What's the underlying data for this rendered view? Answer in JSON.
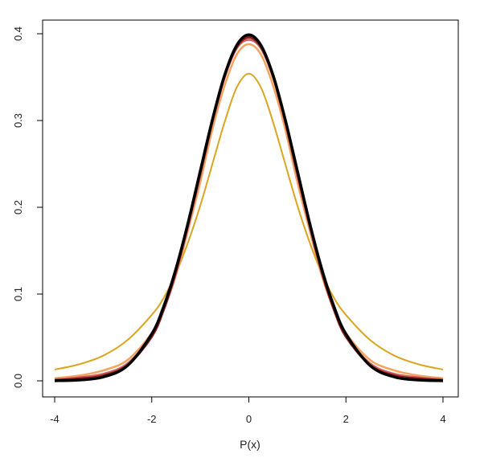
{
  "chart_data": {
    "type": "line",
    "title": "",
    "xlabel": "P(x)",
    "ylabel": "",
    "xlim": [
      -4,
      4
    ],
    "ylim": [
      0,
      0.4
    ],
    "xticks": [
      "-4",
      "-2",
      "0",
      "2",
      "4"
    ],
    "yticks": [
      "0.0",
      "0.1",
      "0.2",
      "0.3",
      "0.4"
    ],
    "grid": false,
    "legend": "none",
    "x": [
      -4.0,
      -3.5,
      -3.0,
      -2.5,
      -2.0,
      -1.75,
      -1.5,
      -1.25,
      -1.0,
      -0.75,
      -0.5,
      -0.25,
      0.0,
      0.25,
      0.5,
      0.75,
      1.0,
      1.25,
      1.5,
      1.75,
      2.0,
      2.5,
      3.0,
      3.5,
      4.0
    ],
    "series": [
      {
        "color": "#DAA520",
        "stroke": 2,
        "values": [
          0.013,
          0.019,
          0.029,
          0.047,
          0.076,
          0.096,
          0.124,
          0.16,
          0.202,
          0.25,
          0.298,
          0.338,
          0.354,
          0.338,
          0.298,
          0.25,
          0.202,
          0.16,
          0.124,
          0.096,
          0.076,
          0.047,
          0.029,
          0.019,
          0.013
        ]
      },
      {
        "color": "#F4A460",
        "stroke": 2.5,
        "values": [
          0.003,
          0.006,
          0.012,
          0.024,
          0.055,
          0.083,
          0.122,
          0.174,
          0.229,
          0.29,
          0.34,
          0.376,
          0.388,
          0.376,
          0.34,
          0.29,
          0.229,
          0.174,
          0.122,
          0.083,
          0.055,
          0.024,
          0.012,
          0.006,
          0.003
        ]
      },
      {
        "color": "#CD5C5C",
        "stroke": 2.5,
        "values": [
          0.0015,
          0.004,
          0.008,
          0.02,
          0.052,
          0.082,
          0.124,
          0.178,
          0.236,
          0.297,
          0.349,
          0.383,
          0.393,
          0.383,
          0.349,
          0.297,
          0.236,
          0.178,
          0.124,
          0.082,
          0.052,
          0.02,
          0.008,
          0.004,
          0.0015
        ]
      },
      {
        "color": "#8B1A1A",
        "stroke": 3,
        "values": [
          0.0006,
          0.0024,
          0.006,
          0.018,
          0.051,
          0.083,
          0.127,
          0.181,
          0.24,
          0.3,
          0.351,
          0.385,
          0.396,
          0.385,
          0.351,
          0.3,
          0.24,
          0.181,
          0.127,
          0.083,
          0.051,
          0.018,
          0.006,
          0.0024,
          0.0006
        ]
      },
      {
        "color": "#000000",
        "stroke": 3.5,
        "values": [
          0.0001,
          0.0009,
          0.0044,
          0.0175,
          0.054,
          0.0863,
          0.1295,
          0.1826,
          0.242,
          0.3011,
          0.3521,
          0.3867,
          0.3989,
          0.3867,
          0.3521,
          0.3011,
          0.242,
          0.1826,
          0.1295,
          0.0863,
          0.054,
          0.0175,
          0.0044,
          0.0009,
          0.0001
        ]
      }
    ]
  }
}
